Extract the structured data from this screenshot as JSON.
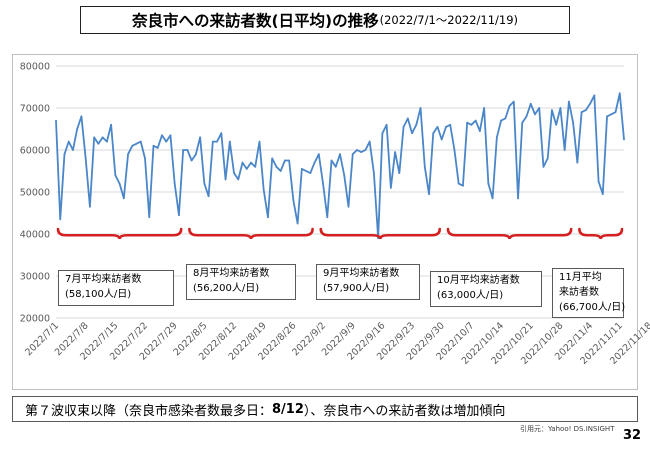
{
  "header": {
    "title_main": "奈良市への来訪者数(日平均)の推移",
    "title_sub": "(2022/7/1～2022/11/19)"
  },
  "chart_data": {
    "type": "line",
    "title": "奈良市への来訪者数(日平均)の推移(2022/7/1～2022/11/19)",
    "ylim": [
      20000,
      80000
    ],
    "y_ticks": [
      "20000",
      "30000",
      "40000",
      "50000",
      "60000",
      "70000",
      "80000"
    ],
    "y_tick_values": [
      20000,
      30000,
      40000,
      50000,
      60000,
      70000,
      80000
    ],
    "x_ticks": [
      "2022/7/1",
      "2022/7/8",
      "2022/7/15",
      "2022/7/22",
      "2022/7/29",
      "2022/8/5",
      "2022/8/12",
      "2022/8/19",
      "2022/8/26",
      "2022/9/2",
      "2022/9/9",
      "2022/9/16",
      "2022/9/23",
      "2022/9/30",
      "2022/10/7",
      "2022/10/14",
      "2022/10/21",
      "2022/10/28",
      "2022/11/4",
      "2022/11/11",
      "2022/11/18"
    ],
    "grid": true,
    "line_color": "#4a86c8",
    "series": [
      {
        "values": [
          67000,
          43500,
          59000,
          62000,
          60000,
          65000,
          68000,
          58000,
          46500,
          63000,
          61500,
          63000,
          62000,
          66000,
          54000,
          52000,
          48500,
          59000,
          61000,
          61500,
          62000,
          58000,
          44000,
          61000,
          60500,
          63500,
          62000,
          63500,
          52000,
          44500,
          60000,
          60000,
          57500,
          59000,
          63000,
          52000,
          49000,
          62000,
          62000,
          64000,
          53000,
          62000,
          54500,
          53000,
          57000,
          55500,
          57000,
          56000,
          62000,
          50500,
          44000,
          58000,
          56000,
          55000,
          57500,
          57500,
          48000,
          42500,
          55500,
          55000,
          54500,
          57000,
          59000,
          52000,
          44000,
          57500,
          56000,
          59000,
          54000,
          46500,
          59000,
          60000,
          59500,
          60000,
          62000,
          54500,
          39000,
          64000,
          66000,
          51000,
          59500,
          54500,
          65500,
          67500,
          64000,
          66000,
          70000,
          56000,
          49500,
          64000,
          65500,
          62500,
          65500,
          66000,
          60000,
          52000,
          51500,
          66500,
          66000,
          67000,
          64500,
          70000,
          52000,
          48500,
          63000,
          67000,
          67500,
          70500,
          71500,
          48500,
          66500,
          68000,
          71000,
          68500,
          70000,
          56000,
          58000,
          69500,
          66000,
          70000,
          60000,
          71500,
          66500,
          57000,
          69000,
          69500,
          71000,
          73000,
          52500,
          49500,
          68000,
          68500,
          69000,
          73500,
          62500
        ]
      }
    ]
  },
  "averages": [
    {
      "line1": "7月平均来訪者数",
      "line2": "(58,100人/日)"
    },
    {
      "line1": "8月平均来訪者数",
      "line2": "(56,200人/日)"
    },
    {
      "line1": "9月平均来訪者数",
      "line2": "(57,900人/日)"
    },
    {
      "line1": "10月平均来訪者数",
      "line2": "(63,000人/日)"
    },
    {
      "line1": "11月平均",
      "line2": "来訪者数",
      "line3": "(66,700人/日)"
    }
  ],
  "colors": {
    "brace": "#d42020",
    "line": "#4a86c8",
    "grid": "#d9d9d9"
  },
  "footer": {
    "text_before": "第７波収束以降（奈良市感染者数最多日：",
    "text_bold": "8/12",
    "text_after": "）、奈良市への来訪者数は増加傾向"
  },
  "source": "引用元：Yahoo! DS.INSIGHT",
  "page_number": "32"
}
